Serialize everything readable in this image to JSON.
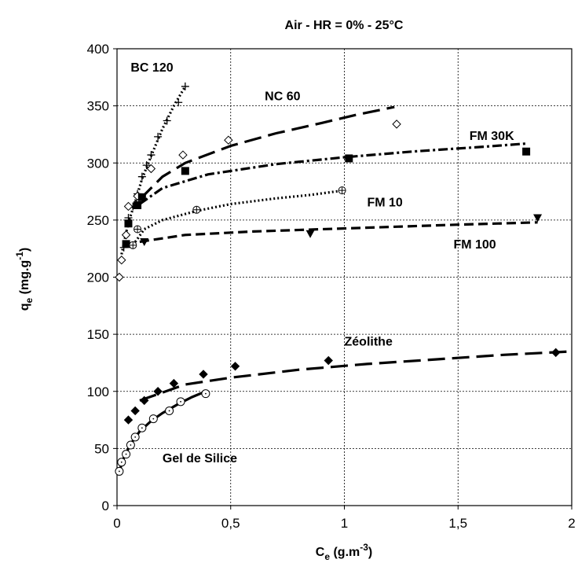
{
  "chart_data": {
    "type": "scatter",
    "title": "Air - HR = 0% - 25°C",
    "xlabel": "C",
    "xlabel_sub": "e",
    "xlabel_units": " (g.m",
    "xlabel_sup": "-3",
    "xlabel_close": ")",
    "ylabel": "q",
    "ylabel_sub": "e",
    "ylabel_units": " (mg.g",
    "ylabel_sup": "-1",
    "ylabel_close": ")",
    "xlim": [
      0,
      2
    ],
    "ylim": [
      0,
      400
    ],
    "xticks": [
      0,
      0.5,
      1,
      1.5,
      2
    ],
    "xtick_labels": [
      "0",
      "0,5",
      "1",
      "1,5",
      "2"
    ],
    "yticks": [
      0,
      50,
      100,
      150,
      200,
      250,
      300,
      350,
      400
    ],
    "ytick_labels": [
      "0",
      "50",
      "100",
      "150",
      "200",
      "250",
      "300",
      "350",
      "400"
    ],
    "grid": true,
    "series": [
      {
        "name": "BC 120",
        "marker": "plus",
        "line_style": "dotted",
        "points": [
          [
            0.03,
            226
          ],
          [
            0.05,
            252
          ],
          [
            0.07,
            262
          ],
          [
            0.09,
            273
          ],
          [
            0.11,
            288
          ],
          [
            0.13,
            298
          ],
          [
            0.15,
            307
          ],
          [
            0.18,
            323
          ],
          [
            0.22,
            337
          ],
          [
            0.27,
            353
          ],
          [
            0.3,
            367
          ]
        ],
        "fit": [
          [
            0.02,
            220
          ],
          [
            0.05,
            248
          ],
          [
            0.08,
            266
          ],
          [
            0.11,
            286
          ],
          [
            0.15,
            306
          ],
          [
            0.2,
            330
          ],
          [
            0.25,
            350
          ],
          [
            0.3,
            367
          ]
        ]
      },
      {
        "name": "NC 60",
        "marker": "diamond-open",
        "line_style": "long-dash",
        "points": [
          [
            0.01,
            200
          ],
          [
            0.02,
            215
          ],
          [
            0.04,
            237
          ],
          [
            0.05,
            262
          ],
          [
            0.09,
            271
          ],
          [
            0.15,
            295
          ],
          [
            0.29,
            307
          ],
          [
            0.49,
            320
          ],
          [
            1.23,
            334
          ]
        ],
        "fit": [
          [
            0.1,
            268
          ],
          [
            0.2,
            288
          ],
          [
            0.3,
            300
          ],
          [
            0.5,
            315
          ],
          [
            0.7,
            326
          ],
          [
            0.9,
            335
          ],
          [
            1.05,
            342
          ],
          [
            1.22,
            349
          ]
        ]
      },
      {
        "name": "FM 30K",
        "marker": "square-filled",
        "line_style": "dash-dot",
        "points": [
          [
            0.04,
            229
          ],
          [
            0.05,
            247
          ],
          [
            0.09,
            263
          ],
          [
            0.11,
            270
          ],
          [
            0.3,
            293
          ],
          [
            1.02,
            304
          ],
          [
            1.8,
            310
          ]
        ],
        "fit": [
          [
            0.1,
            264
          ],
          [
            0.2,
            278
          ],
          [
            0.4,
            290
          ],
          [
            0.7,
            299
          ],
          [
            1.0,
            305
          ],
          [
            1.3,
            310
          ],
          [
            1.6,
            314
          ],
          [
            1.8,
            317
          ]
        ]
      },
      {
        "name": "FM 10",
        "marker": "plus-circle",
        "line_style": "dotted",
        "points": [
          [
            0.07,
            228
          ],
          [
            0.09,
            242
          ],
          [
            0.35,
            259
          ],
          [
            0.99,
            276
          ]
        ],
        "fit": [
          [
            0.07,
            228
          ],
          [
            0.12,
            242
          ],
          [
            0.2,
            250
          ],
          [
            0.35,
            258
          ],
          [
            0.5,
            264
          ],
          [
            0.7,
            269
          ],
          [
            0.85,
            272
          ],
          [
            1.0,
            276
          ]
        ]
      },
      {
        "name": "FM 100",
        "marker": "triangle-down",
        "line_style": "dashed",
        "points": [
          [
            0.12,
            231
          ],
          [
            0.85,
            238
          ],
          [
            1.85,
            252
          ]
        ],
        "fit": [
          [
            0.1,
            231
          ],
          [
            0.3,
            237
          ],
          [
            0.6,
            240
          ],
          [
            0.9,
            242
          ],
          [
            1.2,
            244
          ],
          [
            1.5,
            246
          ],
          [
            1.85,
            248
          ]
        ]
      },
      {
        "name": "Zéolithe",
        "marker": "diamond-filled",
        "line_style": "long-dash",
        "points": [
          [
            0.05,
            75
          ],
          [
            0.08,
            83
          ],
          [
            0.12,
            92
          ],
          [
            0.18,
            100
          ],
          [
            0.25,
            107
          ],
          [
            0.38,
            115
          ],
          [
            0.52,
            122
          ],
          [
            0.93,
            127
          ],
          [
            1.93,
            134
          ]
        ],
        "fit": [
          [
            0.1,
            92
          ],
          [
            0.3,
            106
          ],
          [
            0.5,
            112
          ],
          [
            0.8,
            119
          ],
          [
            1.1,
            124
          ],
          [
            1.4,
            128
          ],
          [
            1.7,
            132
          ],
          [
            2.0,
            135
          ]
        ]
      },
      {
        "name": "Gel de Silice",
        "marker": "circle-open",
        "line_style": "solid",
        "points": [
          [
            0.01,
            30
          ],
          [
            0.02,
            38
          ],
          [
            0.04,
            45
          ],
          [
            0.06,
            53
          ],
          [
            0.08,
            60
          ],
          [
            0.11,
            68
          ],
          [
            0.16,
            76
          ],
          [
            0.23,
            83
          ],
          [
            0.28,
            91
          ],
          [
            0.39,
            98
          ]
        ],
        "fit": [
          [
            0.01,
            30
          ],
          [
            0.03,
            42
          ],
          [
            0.06,
            54
          ],
          [
            0.1,
            65
          ],
          [
            0.15,
            74
          ],
          [
            0.2,
            81
          ],
          [
            0.27,
            89
          ],
          [
            0.33,
            95
          ],
          [
            0.39,
            100
          ]
        ]
      }
    ],
    "annotations": [
      {
        "text": "BC 120",
        "x": 0.06,
        "y": 380
      },
      {
        "text": "NC 60",
        "x": 0.65,
        "y": 355
      },
      {
        "text": "FM 30K",
        "x": 1.55,
        "y": 320
      },
      {
        "text": "FM 10",
        "x": 1.1,
        "y": 262
      },
      {
        "text": "FM 100",
        "x": 1.48,
        "y": 225
      },
      {
        "text": "Zéolithe",
        "x": 1.0,
        "y": 140
      },
      {
        "text": "Gel de Silice",
        "x": 0.2,
        "y": 38
      }
    ]
  }
}
